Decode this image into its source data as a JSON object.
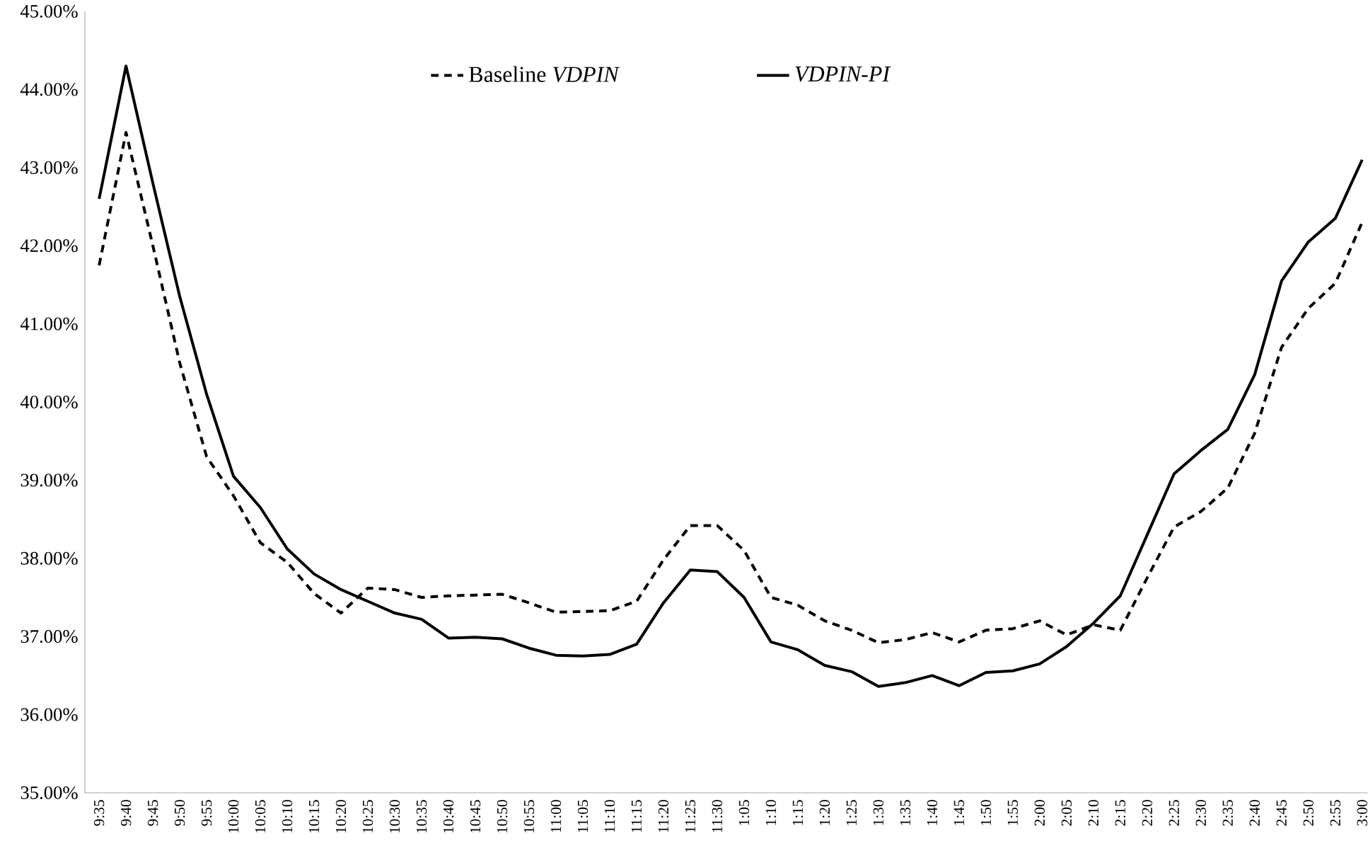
{
  "chart_data": {
    "type": "line",
    "categories": [
      "9:35",
      "9:40",
      "9:45",
      "9:50",
      "9:55",
      "10:00",
      "10:05",
      "10:10",
      "10:15",
      "10:20",
      "10:25",
      "10:30",
      "10:35",
      "10:40",
      "10:45",
      "10:50",
      "10:55",
      "11:00",
      "11:05",
      "11:10",
      "11:15",
      "11:20",
      "11:25",
      "11:30",
      "1:05",
      "1:10",
      "1:15",
      "1:20",
      "1:25",
      "1:30",
      "1:35",
      "1:40",
      "1:45",
      "1:50",
      "1:55",
      "2:00",
      "2:05",
      "2:10",
      "2:15",
      "2:20",
      "2:25",
      "2:30",
      "2:35",
      "2:40",
      "2:45",
      "2:50",
      "2:55",
      "3:00"
    ],
    "series": [
      {
        "name": "Baseline *VDPIN*",
        "color": "#000000",
        "line_style": "dashed",
        "values": [
          41.75,
          43.45,
          42.0,
          40.5,
          39.3,
          38.8,
          38.2,
          37.95,
          37.55,
          37.3,
          37.62,
          37.6,
          37.5,
          37.52,
          37.53,
          37.54,
          37.43,
          37.31,
          37.32,
          37.33,
          37.45,
          37.98,
          38.42,
          38.42,
          38.1,
          37.5,
          37.4,
          37.2,
          37.08,
          36.92,
          36.96,
          37.05,
          36.93,
          37.08,
          37.1,
          37.2,
          37.02,
          37.15,
          37.08,
          37.75,
          38.4,
          38.6,
          38.9,
          39.6,
          40.7,
          41.2,
          41.52,
          42.3
        ]
      },
      {
        "name": "*VDPIN-PI*",
        "color": "#000000",
        "line_style": "solid",
        "values": [
          42.6,
          44.3,
          42.8,
          41.35,
          40.1,
          39.05,
          38.65,
          38.12,
          37.8,
          37.6,
          37.45,
          37.3,
          37.22,
          36.98,
          36.99,
          36.97,
          36.85,
          36.76,
          36.75,
          36.77,
          36.9,
          37.43,
          37.85,
          37.83,
          37.5,
          36.93,
          36.83,
          36.63,
          36.55,
          36.36,
          36.41,
          36.5,
          36.37,
          36.54,
          36.56,
          36.65,
          36.87,
          37.17,
          37.52,
          38.3,
          39.08,
          39.38,
          39.65,
          40.35,
          41.55,
          42.05,
          42.35,
          43.1
        ]
      }
    ],
    "ylim": [
      35,
      45
    ],
    "yticks": [
      {
        "value": 35,
        "label": "35.00%"
      },
      {
        "value": 36,
        "label": "36.00%"
      },
      {
        "value": 37,
        "label": "37.00%"
      },
      {
        "value": 38,
        "label": "38.00%"
      },
      {
        "value": 39,
        "label": "39.00%"
      },
      {
        "value": 40,
        "label": "40.00%"
      },
      {
        "value": 41,
        "label": "41.00%"
      },
      {
        "value": 42,
        "label": "42.00%"
      },
      {
        "value": 43,
        "label": "43.00%"
      },
      {
        "value": 44,
        "label": "44.00%"
      },
      {
        "value": 45,
        "label": "45.00%"
      }
    ],
    "legend": "top",
    "grid": false
  }
}
